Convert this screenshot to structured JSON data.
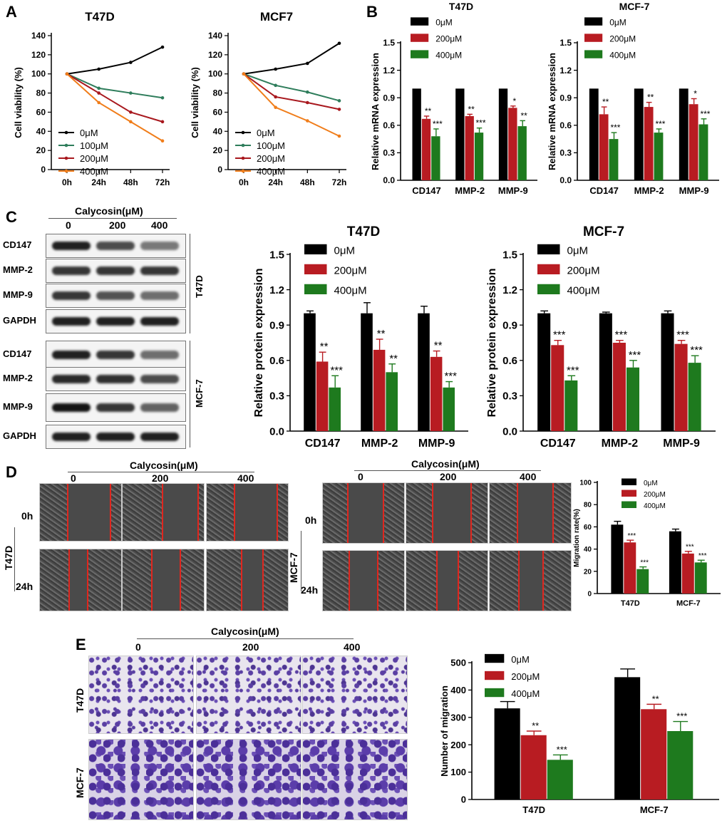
{
  "panels": {
    "A": {
      "letter": "A"
    },
    "B": {
      "letter": "B"
    },
    "C": {
      "letter": "C",
      "calycosin_label": "Calycosin(μM)",
      "doses": [
        "0",
        "200",
        "400"
      ],
      "blot_rows": [
        "CD147",
        "MMP-2",
        "MMP-9",
        "GAPDH",
        "CD147",
        "MMP-2",
        "MMP-9",
        "GAPDH"
      ],
      "group_labels": [
        "T47D",
        "MCF-7"
      ]
    },
    "D": {
      "letter": "D",
      "calycosin_label": "Calycosin(μM)",
      "doses": [
        "0",
        "200",
        "400"
      ],
      "row_labels": [
        "0h",
        "24h"
      ],
      "group_labels": [
        "T47D",
        "MCF-7"
      ]
    },
    "E": {
      "letter": "E",
      "calycosin_label": "Calycosin(μM)",
      "doses": [
        "0",
        "200",
        "400"
      ],
      "group_labels": [
        "T47D",
        "MCF-7"
      ]
    }
  },
  "chart_data": [
    {
      "id": "a-t47d",
      "type": "line",
      "title": "T47D",
      "x": [
        "0h",
        "24h",
        "48h",
        "72h"
      ],
      "ylabel": "Cell viability (%)",
      "ylim": [
        0,
        140
      ],
      "yticks": [
        0,
        20,
        40,
        60,
        80,
        100,
        120,
        140
      ],
      "legend": "bottom-left",
      "series": [
        {
          "name": "0μM",
          "values": [
            100,
            105,
            112,
            128
          ],
          "color": "#000000"
        },
        {
          "name": "100μM",
          "values": [
            100,
            85,
            80,
            75
          ],
          "color": "#2e7d5b"
        },
        {
          "name": "200μM",
          "values": [
            100,
            80,
            60,
            50
          ],
          "color": "#a8181e"
        },
        {
          "name": "400μM",
          "values": [
            100,
            70,
            50,
            30
          ],
          "color": "#f07d1a"
        }
      ]
    },
    {
      "id": "a-mcf7",
      "type": "line",
      "title": "MCF7",
      "x": [
        "0h",
        "24h",
        "48h",
        "72h"
      ],
      "ylabel": "Cell viability (%)",
      "ylim": [
        0,
        140
      ],
      "yticks": [
        0,
        20,
        40,
        60,
        80,
        100,
        120,
        140
      ],
      "legend": "bottom-left",
      "series": [
        {
          "name": "0μM",
          "values": [
            100,
            105,
            111,
            132
          ],
          "color": "#000000"
        },
        {
          "name": "100μM",
          "values": [
            100,
            88,
            81,
            72
          ],
          "color": "#2e7d5b"
        },
        {
          "name": "200μM",
          "values": [
            100,
            76,
            70,
            63
          ],
          "color": "#a8181e"
        },
        {
          "name": "400μM",
          "values": [
            100,
            65,
            51,
            35
          ],
          "color": "#f07d1a"
        }
      ]
    },
    {
      "id": "b-t47d",
      "type": "bar",
      "title": "T47D",
      "categories": [
        "CD147",
        "MMP-2",
        "MMP-9"
      ],
      "ylabel": "Relative mRNA expression",
      "ylim": [
        0,
        1.5
      ],
      "yticks": [
        "0.0",
        "0.3",
        "0.6",
        "0.9",
        "1.2",
        "1.5"
      ],
      "legend": "top-left",
      "series": [
        {
          "name": "0μM",
          "values": [
            1.0,
            1.0,
            1.0
          ],
          "errors": [
            0,
            0,
            0
          ],
          "sig": [
            "",
            "",
            ""
          ],
          "color": "#000000"
        },
        {
          "name": "200μM",
          "values": [
            0.67,
            0.7,
            0.79
          ],
          "errors": [
            0.03,
            0.02,
            0.02
          ],
          "sig": [
            "**",
            "**",
            "*"
          ],
          "color": "#b81c22"
        },
        {
          "name": "400μM",
          "values": [
            0.48,
            0.52,
            0.59
          ],
          "errors": [
            0.08,
            0.05,
            0.06
          ],
          "sig": [
            "***",
            "***",
            "**"
          ],
          "color": "#1e7a1e"
        }
      ]
    },
    {
      "id": "b-mcf7",
      "type": "bar",
      "title": "MCF-7",
      "categories": [
        "CD147",
        "MMP-2",
        "MMP-9"
      ],
      "ylabel": "Relative mRNA expression",
      "ylim": [
        0,
        1.5
      ],
      "yticks": [
        "0.0",
        "0.3",
        "0.6",
        "0.9",
        "1.2",
        "1.5"
      ],
      "legend": "top-left",
      "series": [
        {
          "name": "0μM",
          "values": [
            1.0,
            1.0,
            1.0
          ],
          "errors": [
            0,
            0,
            0
          ],
          "sig": [
            "",
            "",
            ""
          ],
          "color": "#000000"
        },
        {
          "name": "200μM",
          "values": [
            0.72,
            0.8,
            0.83
          ],
          "errors": [
            0.08,
            0.05,
            0.06
          ],
          "sig": [
            "**",
            "**",
            "*"
          ],
          "color": "#b81c22"
        },
        {
          "name": "400μM",
          "values": [
            0.45,
            0.52,
            0.61
          ],
          "errors": [
            0.07,
            0.04,
            0.06
          ],
          "sig": [
            "***",
            "***",
            "***"
          ],
          "color": "#1e7a1e"
        }
      ]
    },
    {
      "id": "c-t47d",
      "type": "bar",
      "title": "T47D",
      "categories": [
        "CD147",
        "MMP-2",
        "MMP-9"
      ],
      "ylabel": "Relative protein expression",
      "ylim": [
        0,
        1.5
      ],
      "yticks": [
        "0.0",
        "0.3",
        "0.6",
        "0.9",
        "1.2",
        "1.5"
      ],
      "legend": "top-left",
      "series": [
        {
          "name": "0μM",
          "values": [
            1.0,
            1.0,
            1.0
          ],
          "errors": [
            0.02,
            0.09,
            0.06
          ],
          "sig": [
            "",
            "",
            ""
          ],
          "color": "#000000"
        },
        {
          "name": "200μM",
          "values": [
            0.59,
            0.69,
            0.63
          ],
          "errors": [
            0.08,
            0.09,
            0.05
          ],
          "sig": [
            "**",
            "**",
            "**"
          ],
          "color": "#b81c22"
        },
        {
          "name": "400μM",
          "values": [
            0.37,
            0.5,
            0.37
          ],
          "errors": [
            0.1,
            0.07,
            0.05
          ],
          "sig": [
            "***",
            "**",
            "***"
          ],
          "color": "#1e7a1e"
        }
      ]
    },
    {
      "id": "c-mcf7",
      "type": "bar",
      "title": "MCF-7",
      "categories": [
        "CD147",
        "MMP-2",
        "MMP-9"
      ],
      "ylabel": "Relative protein expression",
      "ylim": [
        0,
        1.5
      ],
      "yticks": [
        "0.0",
        "0.3",
        "0.6",
        "0.9",
        "1.2",
        "1.5"
      ],
      "legend": "top-left",
      "series": [
        {
          "name": "0μM",
          "values": [
            1.0,
            1.0,
            1.0
          ],
          "errors": [
            0.02,
            0.01,
            0.02
          ],
          "sig": [
            "",
            "",
            ""
          ],
          "color": "#000000"
        },
        {
          "name": "200μM",
          "values": [
            0.73,
            0.75,
            0.74
          ],
          "errors": [
            0.04,
            0.02,
            0.03
          ],
          "sig": [
            "***",
            "***",
            "***"
          ],
          "color": "#b81c22"
        },
        {
          "name": "400μM",
          "values": [
            0.43,
            0.54,
            0.58
          ],
          "errors": [
            0.04,
            0.06,
            0.06
          ],
          "sig": [
            "***",
            "***",
            "***"
          ],
          "color": "#1e7a1e"
        }
      ]
    },
    {
      "id": "d-migration",
      "type": "bar",
      "title": "",
      "categories": [
        "T47D",
        "MCF-7"
      ],
      "ylabel": "Migration rate(%)",
      "ylim": [
        0,
        100
      ],
      "yticks": [
        "0",
        "20",
        "40",
        "60",
        "80",
        "100"
      ],
      "legend": "top-right",
      "series": [
        {
          "name": "0μM",
          "values": [
            62,
            56
          ],
          "errors": [
            3,
            2
          ],
          "sig": [
            "",
            ""
          ],
          "color": "#000000"
        },
        {
          "name": "200μM",
          "values": [
            46,
            36
          ],
          "errors": [
            2,
            2
          ],
          "sig": [
            "***",
            "***"
          ],
          "color": "#b81c22"
        },
        {
          "name": "400μM",
          "values": [
            22,
            28
          ],
          "errors": [
            2,
            2
          ],
          "sig": [
            "***",
            "***"
          ],
          "color": "#1e7a1e"
        }
      ]
    },
    {
      "id": "e-migration",
      "type": "bar",
      "title": "",
      "categories": [
        "T47D",
        "MCF-7"
      ],
      "ylabel": "Number of migration",
      "ylim": [
        0,
        500
      ],
      "yticks": [
        "0",
        "100",
        "200",
        "300",
        "400",
        "500"
      ],
      "legend": "top-left",
      "series": [
        {
          "name": "0μM",
          "values": [
            333,
            447
          ],
          "errors": [
            25,
            30
          ],
          "sig": [
            "",
            ""
          ],
          "color": "#000000"
        },
        {
          "name": "200μM",
          "values": [
            235,
            330
          ],
          "errors": [
            15,
            18
          ],
          "sig": [
            "**",
            "**"
          ],
          "color": "#b81c22"
        },
        {
          "name": "400μM",
          "values": [
            145,
            250
          ],
          "errors": [
            18,
            35
          ],
          "sig": [
            "***",
            "***"
          ],
          "color": "#1e7a1e"
        }
      ]
    }
  ]
}
